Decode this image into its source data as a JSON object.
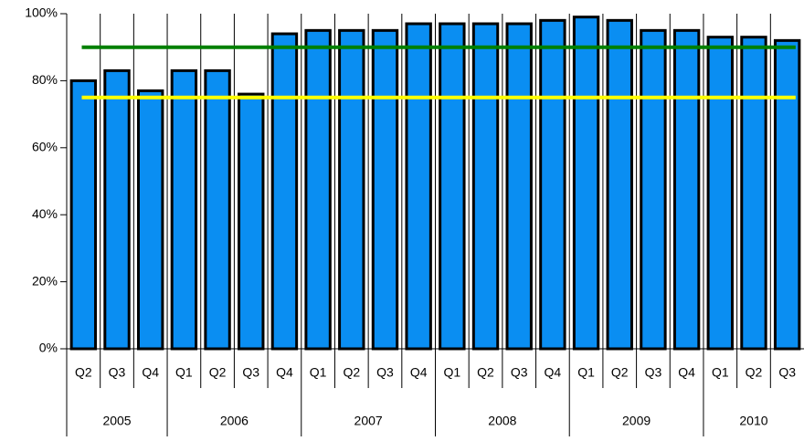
{
  "chart_data": {
    "type": "bar",
    "categories": [
      "Q2",
      "Q3",
      "Q4",
      "Q1",
      "Q2",
      "Q3",
      "Q4",
      "Q1",
      "Q2",
      "Q3",
      "Q4",
      "Q1",
      "Q2",
      "Q3",
      "Q4",
      "Q1",
      "Q2",
      "Q3",
      "Q4",
      "Q1",
      "Q2",
      "Q3"
    ],
    "groups": [
      {
        "label": "2005",
        "count": 3
      },
      {
        "label": "2006",
        "count": 4
      },
      {
        "label": "2007",
        "count": 4
      },
      {
        "label": "2008",
        "count": 4
      },
      {
        "label": "2009",
        "count": 4
      },
      {
        "label": "2010",
        "count": 3
      }
    ],
    "series": [
      {
        "color": "#0a8ef2",
        "values": [
          80,
          83,
          77,
          83,
          83,
          76,
          94,
          95,
          95,
          95,
          97,
          97,
          97,
          97,
          98,
          99,
          98,
          95,
          95,
          93,
          93,
          92
        ]
      }
    ],
    "reference_lines": [
      {
        "value": 90,
        "color": "#008000"
      },
      {
        "value": 75,
        "color": "#ffff00"
      }
    ],
    "ylim": [
      0,
      100
    ],
    "yticks": [
      {
        "value": 0,
        "label": "0%"
      },
      {
        "value": 20,
        "label": "20%"
      },
      {
        "value": 40,
        "label": "40%"
      },
      {
        "value": 60,
        "label": "60%"
      },
      {
        "value": 80,
        "label": "80%"
      },
      {
        "value": 100,
        "label": "100%"
      }
    ]
  }
}
